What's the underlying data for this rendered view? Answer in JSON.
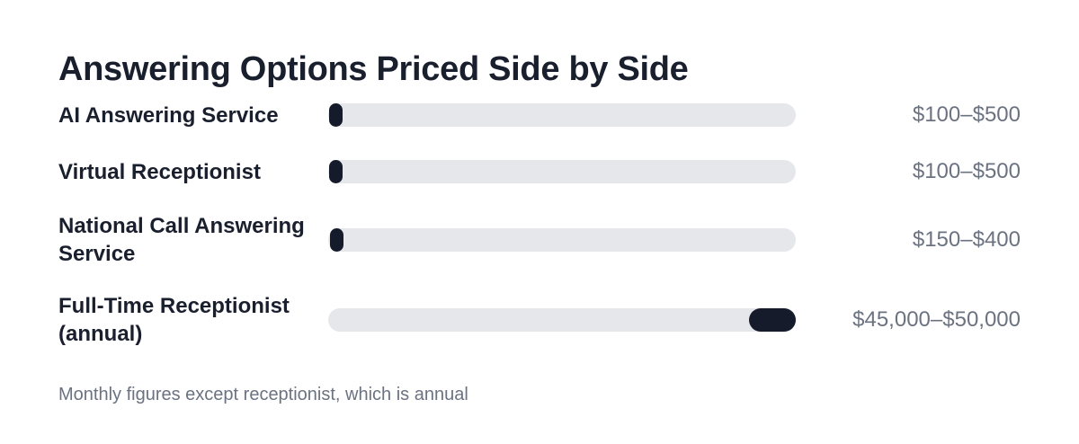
{
  "chart_data": {
    "type": "range",
    "title": "Answering Options Priced Side by Side",
    "categories": [
      "AI Answering Service",
      "Virtual Receptionist",
      "National Call Answering Service",
      "Full-Time Receptionist (annual)"
    ],
    "low": [
      100,
      100,
      150,
      45000
    ],
    "high": [
      500,
      500,
      400,
      50000
    ],
    "value_labels": [
      "$100–$500",
      "$100–$500",
      "$150–$400",
      "$45,000–$50,000"
    ],
    "xlim": [
      0,
      50000
    ],
    "color": "#151b2b",
    "track_color": "#e6e7eb",
    "note": "Monthly figures except receptionist, which is annual"
  }
}
